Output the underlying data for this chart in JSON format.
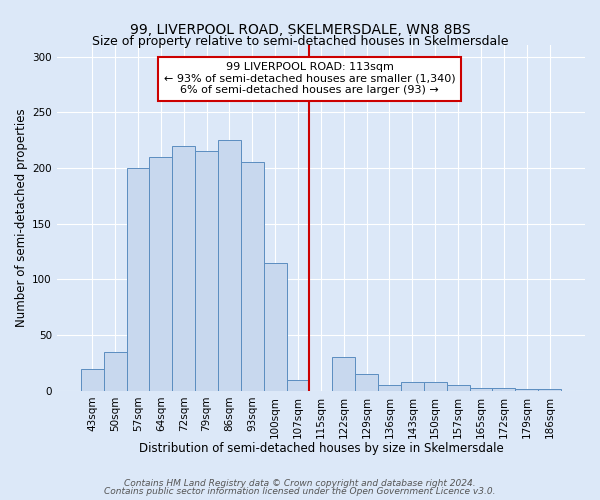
{
  "title": "99, LIVERPOOL ROAD, SKELMERSDALE, WN8 8BS",
  "subtitle": "Size of property relative to semi-detached houses in Skelmersdale",
  "xlabel": "Distribution of semi-detached houses by size in Skelmersdale",
  "ylabel": "Number of semi-detached properties",
  "categories": [
    "43sqm",
    "50sqm",
    "57sqm",
    "64sqm",
    "72sqm",
    "79sqm",
    "86sqm",
    "93sqm",
    "100sqm",
    "107sqm",
    "115sqm",
    "122sqm",
    "129sqm",
    "136sqm",
    "143sqm",
    "150sqm",
    "157sqm",
    "165sqm",
    "172sqm",
    "179sqm",
    "186sqm"
  ],
  "values": [
    20,
    35,
    200,
    210,
    220,
    215,
    225,
    205,
    115,
    10,
    0,
    30,
    15,
    5,
    8,
    8,
    5,
    3,
    3,
    2,
    2
  ],
  "bar_color": "#c8d8ee",
  "bar_edge_color": "#5b8dc0",
  "vline_color": "#cc0000",
  "annotation_title": "99 LIVERPOOL ROAD: 113sqm",
  "annotation_line1": "← 93% of semi-detached houses are smaller (1,340)",
  "annotation_line2": "6% of semi-detached houses are larger (93) →",
  "annotation_box_facecolor": "#ffffff",
  "annotation_box_edgecolor": "#cc0000",
  "background_color": "#dce8f8",
  "plot_bg_color": "#dce8f8",
  "ylim": [
    0,
    310
  ],
  "yticks": [
    0,
    50,
    100,
    150,
    200,
    250,
    300
  ],
  "footer_line1": "Contains HM Land Registry data © Crown copyright and database right 2024.",
  "footer_line2": "Contains public sector information licensed under the Open Government Licence v3.0.",
  "title_fontsize": 10,
  "subtitle_fontsize": 9,
  "xlabel_fontsize": 8.5,
  "ylabel_fontsize": 8.5,
  "tick_fontsize": 7.5,
  "annotation_fontsize": 8,
  "footer_fontsize": 6.5
}
